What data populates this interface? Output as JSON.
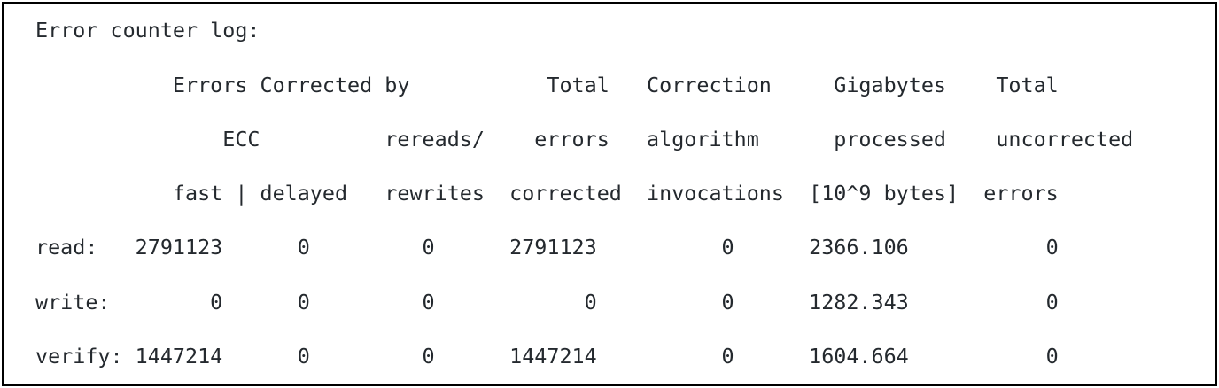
{
  "colors": {
    "background": "#ffffff",
    "border": "#000000",
    "divider": "#d0d0d0",
    "text": "#24292e"
  },
  "log": {
    "title": "Error counter log:",
    "lines": [
      "Error counter log:",
      "           Errors Corrected by           Total   Correction     Gigabytes    Total",
      "               ECC          rereads/    errors   algorithm      processed    uncorrected",
      "           fast | delayed   rewrites  corrected  invocations  [10^9 bytes]  errors",
      "read:   2791123      0         0      2791123          0      2366.106           0",
      "write:        0      0         0            0          0      1282.343           0",
      "verify: 1447214      0         0      1447214          0      1604.664           0"
    ]
  },
  "table": {
    "header_rows": [
      [
        "Errors Corrected by",
        "Total",
        "Correction",
        "Gigabytes",
        "Total"
      ],
      [
        "ECC",
        "rereads/",
        "errors",
        "algorithm",
        "processed",
        "uncorrected"
      ],
      [
        "fast | delayed",
        "rewrites",
        "corrected",
        "invocations",
        "[10^9 bytes]",
        "errors"
      ]
    ],
    "rows": [
      {
        "operation": "read:",
        "errors_corrected_fast": "2791123",
        "errors_corrected_delayed": "0",
        "rereads_rewrites": "0",
        "total_errors_corrected": "2791123",
        "correction_algorithm_invocations": "0",
        "gigabytes_processed": "2366.106",
        "total_uncorrected_errors": "0"
      },
      {
        "operation": "write:",
        "errors_corrected_fast": "0",
        "errors_corrected_delayed": "0",
        "rereads_rewrites": "0",
        "total_errors_corrected": "0",
        "correction_algorithm_invocations": "0",
        "gigabytes_processed": "1282.343",
        "total_uncorrected_errors": "0"
      },
      {
        "operation": "verify:",
        "errors_corrected_fast": "1447214",
        "errors_corrected_delayed": "0",
        "rereads_rewrites": "0",
        "total_errors_corrected": "1447214",
        "correction_algorithm_invocations": "0",
        "gigabytes_processed": "1604.664",
        "total_uncorrected_errors": "0"
      }
    ]
  }
}
